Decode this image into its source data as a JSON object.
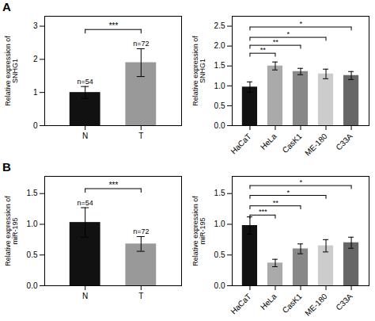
{
  "chart_data": [
    {
      "type": "bar",
      "title": "A",
      "categories": [
        "N",
        "T"
      ],
      "values": [
        1.0,
        1.9
      ],
      "errors": [
        0.18,
        0.42
      ],
      "colors": [
        "#111111",
        "#999999"
      ],
      "ylabel": "Relative expression of\nSNHG1",
      "ylim": [
        0,
        3.3
      ],
      "yticks": [
        0,
        1,
        2,
        3
      ],
      "annotations": [
        {
          "category": "N",
          "text": "n=54"
        },
        {
          "category": "T",
          "text": "n=72"
        }
      ],
      "significance": [
        {
          "from": "N",
          "to": "T",
          "y": 2.9,
          "label": "***"
        }
      ]
    },
    {
      "type": "bar",
      "categories": [
        "HaCaT",
        "HeLa",
        "CasK1",
        "ME-180",
        "C33A"
      ],
      "values": [
        0.97,
        1.5,
        1.36,
        1.3,
        1.26
      ],
      "errors": [
        0.13,
        0.1,
        0.08,
        0.12,
        0.1
      ],
      "colors": [
        "#111111",
        "#aaaaaa",
        "#888888",
        "#cccccc",
        "#666666"
      ],
      "ylabel": "Relative expression of\nSNHG1",
      "ylim": [
        0,
        2.75
      ],
      "yticks": [
        {
          "value": 0.0,
          "label": "0.0"
        },
        {
          "value": 0.5,
          "label": "0.5"
        },
        {
          "value": 1.0,
          "label": "1.0"
        },
        {
          "value": 1.5,
          "label": "1.5"
        },
        {
          "value": 2.0,
          "label": "2.0"
        },
        {
          "value": 2.5,
          "label": "2.5"
        }
      ],
      "significance": [
        {
          "from": "HaCaT",
          "to": "HeLa",
          "y": 1.82,
          "label": "**"
        },
        {
          "from": "HaCaT",
          "to": "CasK1",
          "y": 2.02,
          "label": "**"
        },
        {
          "from": "HaCaT",
          "to": "ME-180",
          "y": 2.22,
          "label": "*"
        },
        {
          "from": "HaCaT",
          "to": "C33A",
          "y": 2.48,
          "label": "*"
        }
      ]
    },
    {
      "type": "bar",
      "title": "B",
      "categories": [
        "N",
        "T"
      ],
      "values": [
        1.03,
        0.68
      ],
      "errors": [
        0.24,
        0.12
      ],
      "colors": [
        "#111111",
        "#999999"
      ],
      "ylabel": "Relative expression of\nmiR-195",
      "ylim": [
        0,
        1.78
      ],
      "yticks": [
        {
          "value": 0.0,
          "label": "0.0"
        },
        {
          "value": 0.5,
          "label": "0.5"
        },
        {
          "value": 1.0,
          "label": "1.0"
        },
        {
          "value": 1.5,
          "label": "1.5"
        }
      ],
      "annotations": [
        {
          "category": "N",
          "text": "n=54"
        },
        {
          "category": "T",
          "text": "n=72"
        }
      ],
      "significance": [
        {
          "from": "N",
          "to": "T",
          "y": 1.58,
          "label": "***"
        }
      ]
    },
    {
      "type": "bar",
      "categories": [
        "HaCaT",
        "HeLa",
        "CasK1",
        "ME-180",
        "C33A"
      ],
      "values": [
        0.98,
        0.37,
        0.6,
        0.65,
        0.7
      ],
      "errors": [
        0.14,
        0.06,
        0.08,
        0.1,
        0.09
      ],
      "colors": [
        "#111111",
        "#aaaaaa",
        "#888888",
        "#cccccc",
        "#666666"
      ],
      "ylabel": "Relative expression of\nmiR-195",
      "ylim": [
        0,
        1.78
      ],
      "yticks": [
        {
          "value": 0.0,
          "label": "0.0"
        },
        {
          "value": 0.5,
          "label": "0.5"
        },
        {
          "value": 1.0,
          "label": "1.0"
        },
        {
          "value": 1.5,
          "label": "1.5"
        }
      ],
      "significance": [
        {
          "from": "HaCaT",
          "to": "HeLa",
          "y": 1.15,
          "label": "***"
        },
        {
          "from": "HaCaT",
          "to": "CasK1",
          "y": 1.3,
          "label": "**"
        },
        {
          "from": "HaCaT",
          "to": "ME-180",
          "y": 1.47,
          "label": "*"
        },
        {
          "from": "HaCaT",
          "to": "C33A",
          "y": 1.63,
          "label": "*"
        }
      ]
    }
  ]
}
